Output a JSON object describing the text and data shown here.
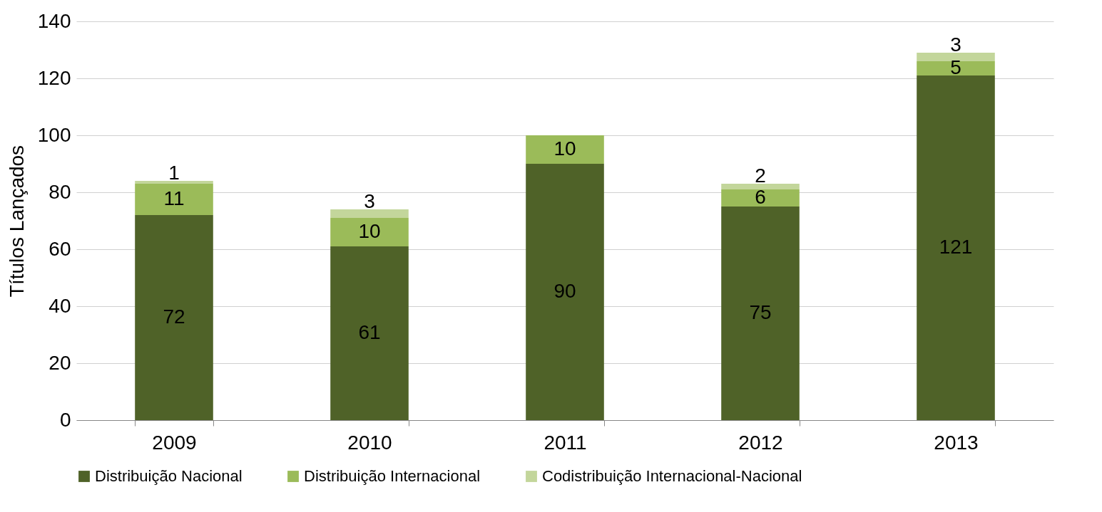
{
  "chart_data": {
    "type": "bar",
    "stacked": true,
    "ylabel": "Títulos Lançados",
    "categories": [
      "2009",
      "2010",
      "2011",
      "2012",
      "2013"
    ],
    "series": [
      {
        "name": "Distribuição Nacional",
        "color": "#4f6228",
        "values": [
          72,
          61,
          90,
          75,
          121
        ]
      },
      {
        "name": "Distribuição Internacional",
        "color": "#9bbb59",
        "values": [
          11,
          10,
          10,
          6,
          5
        ]
      },
      {
        "name": "Codistribuição Internacional-Nacional",
        "color": "#c3d69b",
        "values": [
          1,
          3,
          null,
          2,
          3
        ]
      }
    ],
    "ylim": [
      0,
      140
    ],
    "yticks": [
      0,
      20,
      40,
      60,
      80,
      100,
      120,
      140
    ],
    "grid": "y",
    "legend": "bottom",
    "data_labels": true
  }
}
